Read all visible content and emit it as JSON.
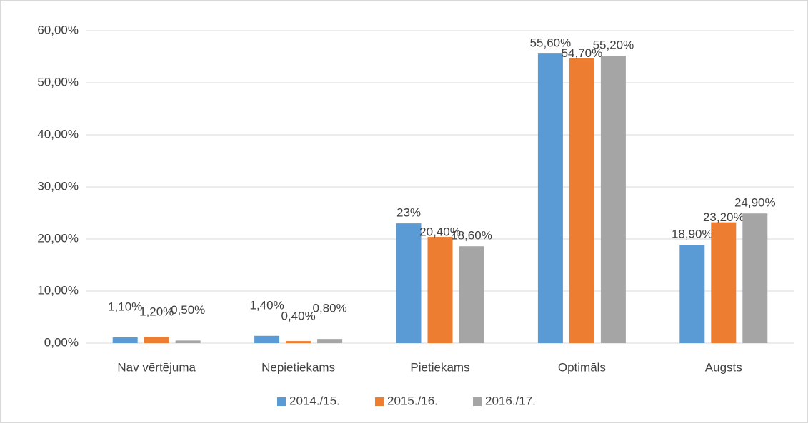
{
  "chart_data": {
    "type": "bar",
    "categories": [
      "Nav vērtējuma",
      "Nepietiekams",
      "Pietiekams",
      "Optimāls",
      "Augsts"
    ],
    "series": [
      {
        "name": "2014./15.",
        "color": "#5b9bd5",
        "values": [
          1.1,
          1.4,
          23,
          55.6,
          18.9
        ],
        "value_labels": [
          "1,10%",
          "1,40%",
          "23%",
          "55,60%",
          "18,90%"
        ]
      },
      {
        "name": "2015./16.",
        "color": "#ed7d31",
        "values": [
          1.2,
          0.4,
          20.4,
          54.7,
          23.2
        ],
        "value_labels": [
          "1,20%",
          "0,40%",
          "20,40%",
          "54,70%",
          "23,20%"
        ]
      },
      {
        "name": "2016./17.",
        "color": "#a5a5a5",
        "values": [
          0.5,
          0.8,
          18.6,
          55.2,
          24.9
        ],
        "value_labels": [
          "0,50%",
          "0,80%",
          "18,60%",
          "55,20%",
          "24,90%"
        ]
      }
    ],
    "ylim": [
      0,
      60
    ],
    "yticks": [
      {
        "value": 0,
        "label": "0,00%"
      },
      {
        "value": 10,
        "label": "10,00%"
      },
      {
        "value": 20,
        "label": "20,00%"
      },
      {
        "value": 30,
        "label": "30,00%"
      },
      {
        "value": 40,
        "label": "40,00%"
      },
      {
        "value": 50,
        "label": "50,00%"
      },
      {
        "value": 60,
        "label": "60,00%"
      }
    ],
    "grid": true,
    "legend": "bottom"
  }
}
